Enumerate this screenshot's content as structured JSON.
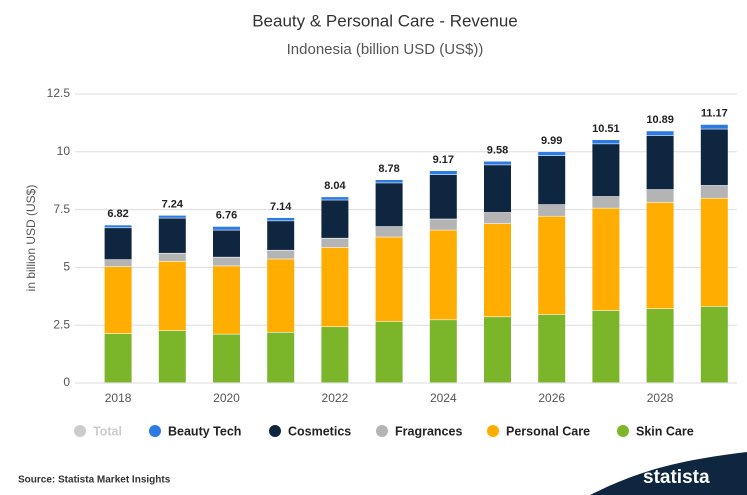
{
  "chart_data": {
    "type": "stacked_bar",
    "title": "Beauty & Personal Care - Revenue",
    "subtitle": "Indonesia (billion USD (US$))",
    "y_label": "in billion USD (US$)",
    "source": "Source: Statista Market Insights",
    "logo": "statista",
    "categories": [
      "2018",
      null,
      "2020",
      null,
      "2022",
      null,
      "2024",
      null,
      "2026",
      null,
      "2028",
      null
    ],
    "series": [
      {
        "name": "Total",
        "color": "#cccccc",
        "visible": false,
        "values": [
          6.82,
          7.24,
          6.76,
          7.14,
          8.04,
          8.78,
          9.17,
          9.58,
          9.99,
          10.51,
          10.89,
          11.17
        ]
      },
      {
        "name": "Beauty Tech",
        "color": "#2c7be5",
        "visible": true,
        "values": [
          0.12,
          0.12,
          0.16,
          0.14,
          0.14,
          0.14,
          0.17,
          0.16,
          0.17,
          0.18,
          0.2,
          0.2
        ]
      },
      {
        "name": "Cosmetics",
        "color": "#0f2640",
        "visible": true,
        "values": [
          1.38,
          1.52,
          1.17,
          1.27,
          1.65,
          1.89,
          1.92,
          2.06,
          2.12,
          2.28,
          2.34,
          2.44
        ]
      },
      {
        "name": "Fragrances",
        "color": "#b4b4b4",
        "visible": true,
        "values": [
          0.3,
          0.35,
          0.38,
          0.38,
          0.4,
          0.45,
          0.48,
          0.48,
          0.5,
          0.5,
          0.55,
          0.55
        ]
      },
      {
        "name": "Personal Care",
        "color": "#ffad00",
        "visible": true,
        "values": [
          2.9,
          3.0,
          2.95,
          3.17,
          3.43,
          3.65,
          3.88,
          4.03,
          4.25,
          4.43,
          4.6,
          4.68
        ]
      },
      {
        "name": "Skin Care",
        "color": "#7bb62a",
        "visible": true,
        "values": [
          2.12,
          2.25,
          2.1,
          2.18,
          2.42,
          2.65,
          2.72,
          2.85,
          2.95,
          3.12,
          3.2,
          3.3
        ]
      }
    ],
    "ylim": [
      0,
      12.5
    ],
    "yticks": [
      0,
      2.5,
      5,
      7.5,
      10,
      12.5
    ],
    "grid": true
  }
}
